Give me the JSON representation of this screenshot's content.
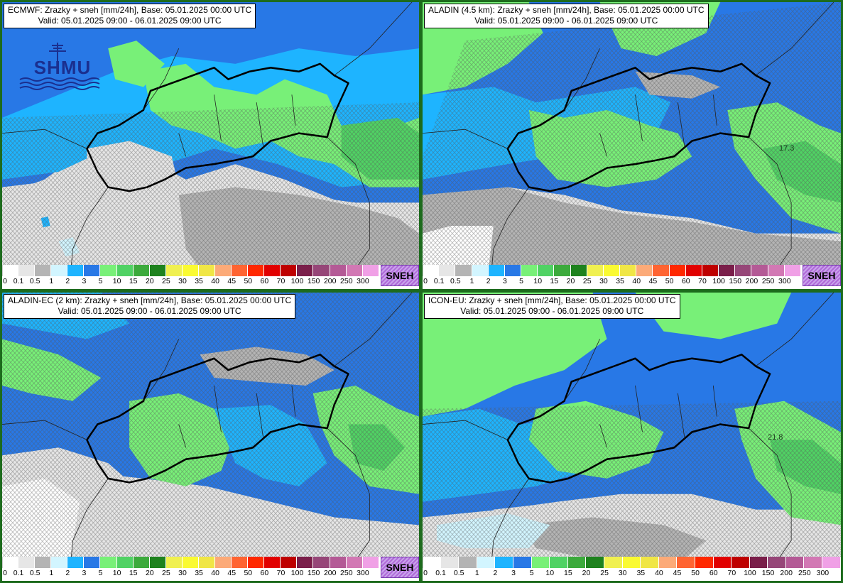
{
  "legend": {
    "ticks": [
      "0",
      "0.1",
      "0.5",
      "1",
      "2",
      "3",
      "5",
      "10",
      "15",
      "20",
      "25",
      "30",
      "35",
      "40",
      "45",
      "50",
      "60",
      "70",
      "100",
      "150",
      "200",
      "250",
      "300"
    ],
    "colors": [
      "#ffffff",
      "#e6e6e6",
      "#b4b4b4",
      "#d2f5ff",
      "#1eb4ff",
      "#2878e6",
      "#78f078",
      "#50d264",
      "#3caa3c",
      "#1e821e",
      "#f0f050",
      "#fafa32",
      "#f0e646",
      "#fcaa78",
      "#ff6432",
      "#ff2800",
      "#e10000",
      "#be0000",
      "#7a1e4a",
      "#964678",
      "#b45a96",
      "#d278b4",
      "#f0a0e6"
    ],
    "snow_label": "SNEH"
  },
  "panels": [
    {
      "id": "ecmwf",
      "title_line1": "ECMWF: Zrazky + sneh [mm/24h], Base: 05.01.2025 00:00 UTC",
      "title_line2": "Valid: 05.01.2025 09:00 - 06.01.2025 09:00 UTC",
      "logo_text": "SHMU",
      "value_label": "",
      "show_sneh": true
    },
    {
      "id": "aladin45",
      "title_line1": "ALADIN (4.5 km): Zrazky + sneh [mm/24h], Base: 05.01.2025 00:00 UTC",
      "title_line2": "Valid: 05.01.2025 09:00 - 06.01.2025 09:00 UTC",
      "logo_text": "",
      "value_label": "17.3",
      "show_sneh": true
    },
    {
      "id": "aladinec",
      "title_line1": "ALADIN-EC (2 km): Zrazky + sneh [mm/24h], Base: 05.01.2025 00:00 UTC",
      "title_line2": "Valid: 05.01.2025 09:00 - 06.01.2025 09:00 UTC",
      "logo_text": "",
      "value_label": "",
      "show_sneh": true
    },
    {
      "id": "iconeu",
      "title_line1": "ICON-EU: Zrazky + sneh [mm/24h], Base: 05.01.2025 00:00 UTC",
      "title_line2": "Valid: 05.01.2025 09:00 - 06.01.2025 09:00 UTC",
      "logo_text": "",
      "value_label": "21.8",
      "show_sneh": false
    }
  ]
}
